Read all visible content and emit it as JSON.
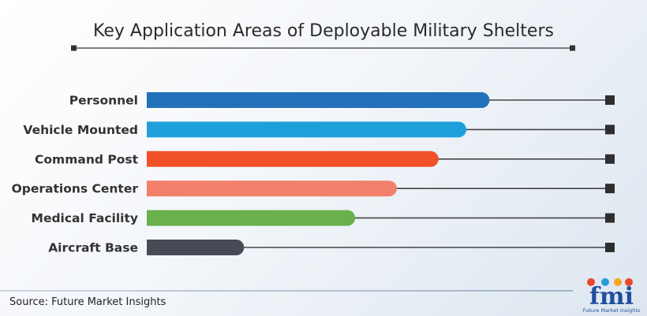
{
  "chart_data": {
    "type": "bar",
    "orientation": "horizontal",
    "title": "Key Application Areas of Deployable Military Shelters",
    "categories": [
      "Personnel",
      "Vehicle Mounted",
      "Command Post",
      "Operations Center",
      "Medical Facility",
      "Aircraft Base"
    ],
    "values": [
      74,
      69,
      63,
      54,
      45,
      21
    ],
    "colors": [
      "#2271ba",
      "#1fa0db",
      "#f05128",
      "#f2806b",
      "#6ab04c",
      "#474b55"
    ],
    "xlim": [
      0,
      100
    ],
    "grid": false,
    "legend": "none"
  },
  "footer": {
    "source": "Source: Future Market Insights"
  },
  "logo": {
    "text": "fmi",
    "subtitle": "Future Market Insights"
  }
}
